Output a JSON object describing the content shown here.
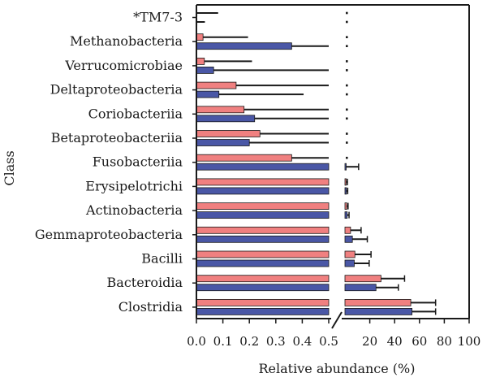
{
  "chart_data": {
    "type": "bar",
    "orientation": "horizontal",
    "ylabel": "Class",
    "xlabel": "Relative abundance (%)",
    "categories": [
      "*TM7-3",
      "Methanobacteria",
      "Verrucomicrobiae",
      "Deltaproteobacteria",
      "Coriobacteriia",
      "Betaproteobacteriia",
      "Fusobacteriia",
      "Erysipelotrichi",
      "Actinobacteria",
      "Gemmaproteobacteria",
      "Bacilli",
      "Bacteroidia",
      "Clostridia"
    ],
    "x_break": {
      "left_range": [
        0,
        0.5
      ],
      "left_ticks": [
        "0.0",
        "0.1",
        "0.2",
        "0.3",
        "0.4",
        "0.5"
      ],
      "right_range": [
        0,
        100
      ],
      "right_ticks": [
        "20",
        "40",
        "60",
        "80",
        "100"
      ]
    },
    "series": [
      {
        "color": "#f08080",
        "values": [
          0.002,
          0.025,
          0.03,
          0.15,
          0.18,
          0.24,
          0.36,
          1.0,
          1.5,
          4.5,
          8.0,
          29.0,
          53.0
        ],
        "errors": [
          0.08,
          0.17,
          0.18,
          0.35,
          0.5,
          0.5,
          0.5,
          1.0,
          1.0,
          8.5,
          13.0,
          19.0,
          20.0
        ]
      },
      {
        "color": "#4a57a6",
        "values": [
          0.002,
          0.36,
          0.065,
          0.085,
          0.22,
          0.2,
          1.0,
          1.2,
          1.8,
          6.0,
          7.5,
          25.0,
          54.0
        ],
        "errors": [
          0.03,
          0.5,
          0.5,
          0.32,
          0.5,
          0.5,
          10.0,
          1.0,
          1.5,
          12.0,
          12.0,
          18.0,
          19.0
        ]
      }
    ],
    "grid": false
  }
}
